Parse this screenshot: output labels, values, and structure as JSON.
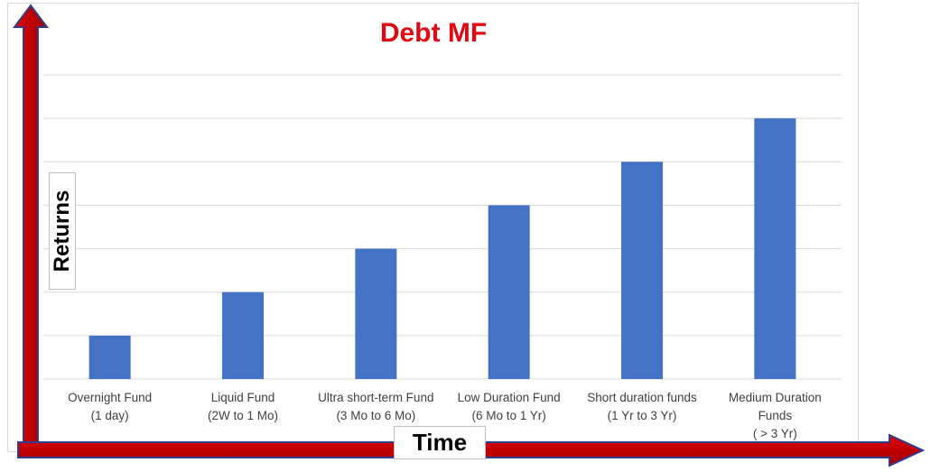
{
  "chart_data": {
    "type": "bar",
    "title": "Debt MF",
    "ylabel": "Returns",
    "xlabel": "Time",
    "categories": [
      [
        "Overnight Fund",
        "(1 day)"
      ],
      [
        "Liquid Fund",
        "(2W to 1 Mo)"
      ],
      [
        "Ultra short-term Fund",
        "(3 Mo to 6 Mo)"
      ],
      [
        "Low Duration Fund",
        "(6 Mo to 1 Yr)"
      ],
      [
        "Short duration funds",
        "(1 Yr to 3 Yr)"
      ],
      [
        "Medium Duration",
        "Funds",
        "( > 3 Yr)"
      ]
    ],
    "values": [
      1,
      2,
      3,
      4,
      5,
      6
    ],
    "ylim": [
      0,
      7
    ],
    "grid": true,
    "bar_color": "#4472c4",
    "axis_arrow_color": "#c00000",
    "title_color": "#e30613"
  }
}
